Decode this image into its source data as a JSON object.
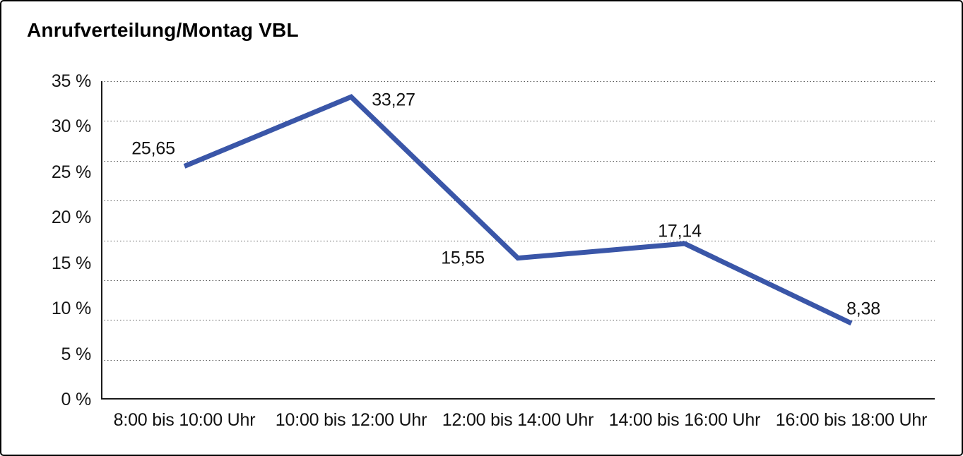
{
  "frame": {
    "background": "#ffffff",
    "border_color": "#000000"
  },
  "chart_data": {
    "type": "line",
    "title": "Anrufverteilung/Montag VBL",
    "categories": [
      "8:00 bis 10:00 Uhr",
      "10:00 bis 12:00 Uhr",
      "12:00 bis 14:00 Uhr",
      "14:00 bis 16:00 Uhr",
      "16:00 bis 18:00 Uhr"
    ],
    "values": [
      25.65,
      33.27,
      15.55,
      17.14,
      8.38
    ],
    "point_labels": [
      "25,65",
      "33,27",
      "15,55",
      "17,14",
      "8,38"
    ],
    "y_ticks": [
      "35 %",
      "30 %",
      "25 %",
      "20 %",
      "15 %",
      "10 %",
      "5 %",
      "0 %"
    ],
    "ylim": [
      0,
      35
    ],
    "y_unit": "%",
    "xlabel": "",
    "ylabel": "",
    "grid": true,
    "gridline_style": "dotted",
    "gridline_count": 9,
    "legend": "none",
    "line_color": "#3A56A8",
    "axis_color": "#1a1a1a",
    "gridline_color": "#5a5a5a",
    "label_color": "#111111"
  }
}
